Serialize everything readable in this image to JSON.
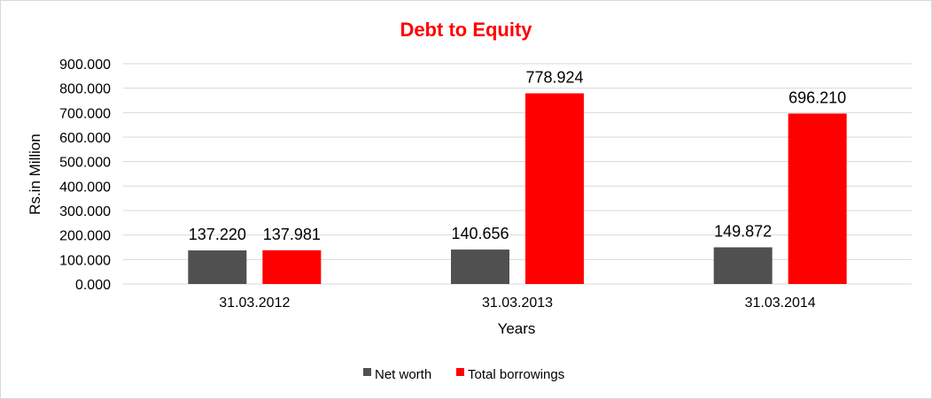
{
  "chart_data": {
    "type": "bar",
    "title": "Debt to Equity",
    "xlabel": "Years",
    "ylabel": "Rs.in Million",
    "categories": [
      "31.03.2012",
      "31.03.2013",
      "31.03.2014"
    ],
    "series": [
      {
        "name": "Net worth",
        "values": [
          137.22,
          140.656,
          149.872
        ],
        "color": "#505050"
      },
      {
        "name": "Total borrowings",
        "values": [
          137.981,
          778.924,
          696.21
        ],
        "color": "#ff0000"
      }
    ],
    "ylim": [
      0,
      900
    ],
    "yticks": [
      "0.000",
      "100.000",
      "200.000",
      "300.000",
      "400.000",
      "500.000",
      "600.000",
      "700.000",
      "800.000",
      "900.000"
    ],
    "data_labels": [
      [
        "137.220",
        "140.656",
        "149.872"
      ],
      [
        "137.981",
        "778.924",
        "696.210"
      ]
    ],
    "title_color": "#ff0000",
    "grid": true,
    "legend_position": "bottom"
  }
}
